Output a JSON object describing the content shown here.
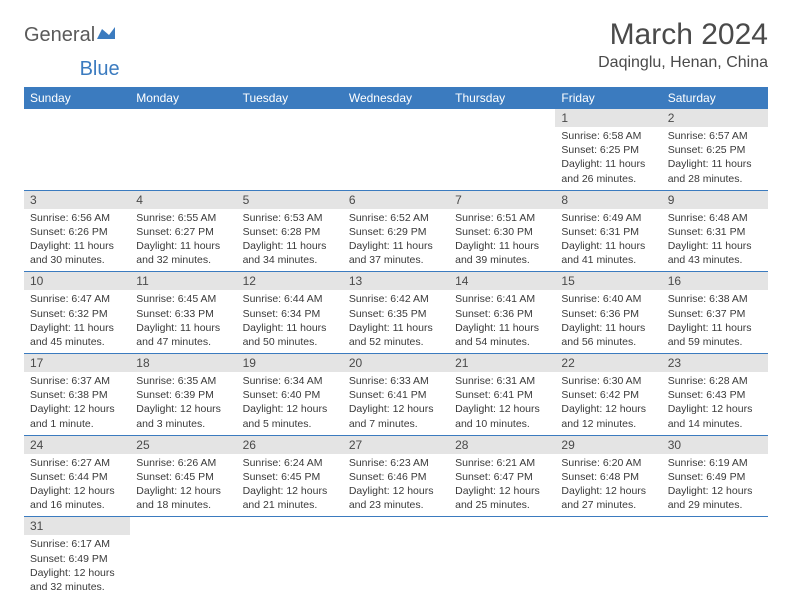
{
  "logo": {
    "general": "General",
    "blue": "Blue"
  },
  "title": "March 2024",
  "location": "Daqinglu, Henan, China",
  "colors": {
    "header_bg": "#3b7bbf",
    "header_text": "#ffffff",
    "daynum_bg": "#e4e4e4",
    "border": "#3b7bbf",
    "text": "#3a3a3a"
  },
  "day_headers": [
    "Sunday",
    "Monday",
    "Tuesday",
    "Wednesday",
    "Thursday",
    "Friday",
    "Saturday"
  ],
  "weeks": [
    [
      {
        "n": "",
        "sunrise": "",
        "sunset": "",
        "daylight": ""
      },
      {
        "n": "",
        "sunrise": "",
        "sunset": "",
        "daylight": ""
      },
      {
        "n": "",
        "sunrise": "",
        "sunset": "",
        "daylight": ""
      },
      {
        "n": "",
        "sunrise": "",
        "sunset": "",
        "daylight": ""
      },
      {
        "n": "",
        "sunrise": "",
        "sunset": "",
        "daylight": ""
      },
      {
        "n": "1",
        "sunrise": "Sunrise: 6:58 AM",
        "sunset": "Sunset: 6:25 PM",
        "daylight": "Daylight: 11 hours and 26 minutes."
      },
      {
        "n": "2",
        "sunrise": "Sunrise: 6:57 AM",
        "sunset": "Sunset: 6:25 PM",
        "daylight": "Daylight: 11 hours and 28 minutes."
      }
    ],
    [
      {
        "n": "3",
        "sunrise": "Sunrise: 6:56 AM",
        "sunset": "Sunset: 6:26 PM",
        "daylight": "Daylight: 11 hours and 30 minutes."
      },
      {
        "n": "4",
        "sunrise": "Sunrise: 6:55 AM",
        "sunset": "Sunset: 6:27 PM",
        "daylight": "Daylight: 11 hours and 32 minutes."
      },
      {
        "n": "5",
        "sunrise": "Sunrise: 6:53 AM",
        "sunset": "Sunset: 6:28 PM",
        "daylight": "Daylight: 11 hours and 34 minutes."
      },
      {
        "n": "6",
        "sunrise": "Sunrise: 6:52 AM",
        "sunset": "Sunset: 6:29 PM",
        "daylight": "Daylight: 11 hours and 37 minutes."
      },
      {
        "n": "7",
        "sunrise": "Sunrise: 6:51 AM",
        "sunset": "Sunset: 6:30 PM",
        "daylight": "Daylight: 11 hours and 39 minutes."
      },
      {
        "n": "8",
        "sunrise": "Sunrise: 6:49 AM",
        "sunset": "Sunset: 6:31 PM",
        "daylight": "Daylight: 11 hours and 41 minutes."
      },
      {
        "n": "9",
        "sunrise": "Sunrise: 6:48 AM",
        "sunset": "Sunset: 6:31 PM",
        "daylight": "Daylight: 11 hours and 43 minutes."
      }
    ],
    [
      {
        "n": "10",
        "sunrise": "Sunrise: 6:47 AM",
        "sunset": "Sunset: 6:32 PM",
        "daylight": "Daylight: 11 hours and 45 minutes."
      },
      {
        "n": "11",
        "sunrise": "Sunrise: 6:45 AM",
        "sunset": "Sunset: 6:33 PM",
        "daylight": "Daylight: 11 hours and 47 minutes."
      },
      {
        "n": "12",
        "sunrise": "Sunrise: 6:44 AM",
        "sunset": "Sunset: 6:34 PM",
        "daylight": "Daylight: 11 hours and 50 minutes."
      },
      {
        "n": "13",
        "sunrise": "Sunrise: 6:42 AM",
        "sunset": "Sunset: 6:35 PM",
        "daylight": "Daylight: 11 hours and 52 minutes."
      },
      {
        "n": "14",
        "sunrise": "Sunrise: 6:41 AM",
        "sunset": "Sunset: 6:36 PM",
        "daylight": "Daylight: 11 hours and 54 minutes."
      },
      {
        "n": "15",
        "sunrise": "Sunrise: 6:40 AM",
        "sunset": "Sunset: 6:36 PM",
        "daylight": "Daylight: 11 hours and 56 minutes."
      },
      {
        "n": "16",
        "sunrise": "Sunrise: 6:38 AM",
        "sunset": "Sunset: 6:37 PM",
        "daylight": "Daylight: 11 hours and 59 minutes."
      }
    ],
    [
      {
        "n": "17",
        "sunrise": "Sunrise: 6:37 AM",
        "sunset": "Sunset: 6:38 PM",
        "daylight": "Daylight: 12 hours and 1 minute."
      },
      {
        "n": "18",
        "sunrise": "Sunrise: 6:35 AM",
        "sunset": "Sunset: 6:39 PM",
        "daylight": "Daylight: 12 hours and 3 minutes."
      },
      {
        "n": "19",
        "sunrise": "Sunrise: 6:34 AM",
        "sunset": "Sunset: 6:40 PM",
        "daylight": "Daylight: 12 hours and 5 minutes."
      },
      {
        "n": "20",
        "sunrise": "Sunrise: 6:33 AM",
        "sunset": "Sunset: 6:41 PM",
        "daylight": "Daylight: 12 hours and 7 minutes."
      },
      {
        "n": "21",
        "sunrise": "Sunrise: 6:31 AM",
        "sunset": "Sunset: 6:41 PM",
        "daylight": "Daylight: 12 hours and 10 minutes."
      },
      {
        "n": "22",
        "sunrise": "Sunrise: 6:30 AM",
        "sunset": "Sunset: 6:42 PM",
        "daylight": "Daylight: 12 hours and 12 minutes."
      },
      {
        "n": "23",
        "sunrise": "Sunrise: 6:28 AM",
        "sunset": "Sunset: 6:43 PM",
        "daylight": "Daylight: 12 hours and 14 minutes."
      }
    ],
    [
      {
        "n": "24",
        "sunrise": "Sunrise: 6:27 AM",
        "sunset": "Sunset: 6:44 PM",
        "daylight": "Daylight: 12 hours and 16 minutes."
      },
      {
        "n": "25",
        "sunrise": "Sunrise: 6:26 AM",
        "sunset": "Sunset: 6:45 PM",
        "daylight": "Daylight: 12 hours and 18 minutes."
      },
      {
        "n": "26",
        "sunrise": "Sunrise: 6:24 AM",
        "sunset": "Sunset: 6:45 PM",
        "daylight": "Daylight: 12 hours and 21 minutes."
      },
      {
        "n": "27",
        "sunrise": "Sunrise: 6:23 AM",
        "sunset": "Sunset: 6:46 PM",
        "daylight": "Daylight: 12 hours and 23 minutes."
      },
      {
        "n": "28",
        "sunrise": "Sunrise: 6:21 AM",
        "sunset": "Sunset: 6:47 PM",
        "daylight": "Daylight: 12 hours and 25 minutes."
      },
      {
        "n": "29",
        "sunrise": "Sunrise: 6:20 AM",
        "sunset": "Sunset: 6:48 PM",
        "daylight": "Daylight: 12 hours and 27 minutes."
      },
      {
        "n": "30",
        "sunrise": "Sunrise: 6:19 AM",
        "sunset": "Sunset: 6:49 PM",
        "daylight": "Daylight: 12 hours and 29 minutes."
      }
    ],
    [
      {
        "n": "31",
        "sunrise": "Sunrise: 6:17 AM",
        "sunset": "Sunset: 6:49 PM",
        "daylight": "Daylight: 12 hours and 32 minutes."
      },
      {
        "n": "",
        "sunrise": "",
        "sunset": "",
        "daylight": ""
      },
      {
        "n": "",
        "sunrise": "",
        "sunset": "",
        "daylight": ""
      },
      {
        "n": "",
        "sunrise": "",
        "sunset": "",
        "daylight": ""
      },
      {
        "n": "",
        "sunrise": "",
        "sunset": "",
        "daylight": ""
      },
      {
        "n": "",
        "sunrise": "",
        "sunset": "",
        "daylight": ""
      },
      {
        "n": "",
        "sunrise": "",
        "sunset": "",
        "daylight": ""
      }
    ]
  ]
}
